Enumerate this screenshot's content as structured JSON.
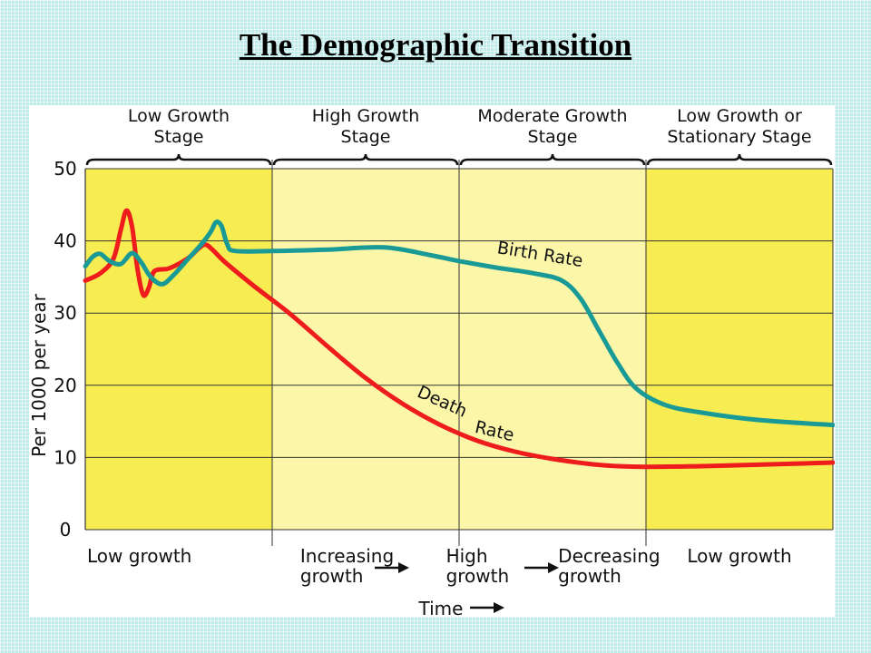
{
  "slide": {
    "title": "The Demographic Transition"
  },
  "colors": {
    "birth_rate": "#1a9a96",
    "death_rate": "#ee1c1c",
    "stage_dark": "#f7ec52",
    "stage_light": "#fbf6a8",
    "slide_background": "#bfeaea"
  },
  "chart_data": {
    "type": "line",
    "title": "",
    "xlabel": "Time",
    "ylabel": "Per 1000 per year",
    "y_ticks": [
      0,
      10,
      20,
      30,
      40,
      50
    ],
    "ylim": [
      0,
      50
    ],
    "xlim": [
      0,
      4
    ],
    "grid": true,
    "stages": [
      {
        "lines": [
          "Low Growth",
          "Stage"
        ],
        "x_start": 0,
        "x_end": 1
      },
      {
        "lines": [
          "High Growth",
          "Stage"
        ],
        "x_start": 1,
        "x_end": 2
      },
      {
        "lines": [
          "Moderate Growth",
          "Stage"
        ],
        "x_start": 2,
        "x_end": 3
      },
      {
        "lines": [
          "Low Growth or",
          "Stationary Stage"
        ],
        "x_start": 3,
        "x_end": 4
      }
    ],
    "growth_labels": [
      {
        "lines": [
          "Low growth"
        ],
        "x": 0.0,
        "anchor": "start"
      },
      {
        "lines": [
          "Increasing",
          "growth"
        ],
        "x": 1.15,
        "anchor": "start"
      },
      {
        "lines": [
          "High",
          "growth"
        ],
        "x": 1.93,
        "anchor": "start"
      },
      {
        "lines": [
          "Decreasing",
          "growth"
        ],
        "x": 2.53,
        "anchor": "start"
      },
      {
        "lines": [
          "Low growth"
        ],
        "x": 3.22,
        "anchor": "start"
      }
    ],
    "series": [
      {
        "name": "Birth Rate",
        "points": [
          [
            0,
            36.5
          ],
          [
            0.04,
            37.8
          ],
          [
            0.08,
            38.2
          ],
          [
            0.13,
            37.2
          ],
          [
            0.19,
            36.8
          ],
          [
            0.25,
            38.3
          ],
          [
            0.3,
            37.0
          ],
          [
            0.35,
            35.0
          ],
          [
            0.41,
            34.0
          ],
          [
            0.47,
            35.2
          ],
          [
            0.55,
            37.5
          ],
          [
            0.62,
            39.5
          ],
          [
            0.67,
            41.2
          ],
          [
            0.7,
            42.6
          ],
          [
            0.73,
            42.0
          ],
          [
            0.76,
            39.5
          ],
          [
            0.8,
            38.6
          ],
          [
            1.0,
            38.6
          ],
          [
            1.3,
            38.8
          ],
          [
            1.6,
            39.1
          ],
          [
            1.85,
            38.0
          ],
          [
            2.0,
            37.2
          ],
          [
            2.2,
            36.3
          ],
          [
            2.4,
            35.5
          ],
          [
            2.55,
            34.5
          ],
          [
            2.65,
            32.0
          ],
          [
            2.75,
            27.5
          ],
          [
            2.85,
            23.0
          ],
          [
            2.95,
            19.5
          ],
          [
            3.1,
            17.3
          ],
          [
            3.3,
            16.2
          ],
          [
            3.6,
            15.2
          ],
          [
            4.0,
            14.5
          ]
        ]
      },
      {
        "name": "Death Rate",
        "points": [
          [
            0,
            34.5
          ],
          [
            0.08,
            35.5
          ],
          [
            0.15,
            37.5
          ],
          [
            0.19,
            41.5
          ],
          [
            0.22,
            44.2
          ],
          [
            0.25,
            42.0
          ],
          [
            0.28,
            36.0
          ],
          [
            0.31,
            32.5
          ],
          [
            0.34,
            33.5
          ],
          [
            0.37,
            35.8
          ],
          [
            0.45,
            36.2
          ],
          [
            0.55,
            37.6
          ],
          [
            0.6,
            38.8
          ],
          [
            0.64,
            39.5
          ],
          [
            0.68,
            38.8
          ],
          [
            0.75,
            37.0
          ],
          [
            0.9,
            33.8
          ],
          [
            1.1,
            29.8
          ],
          [
            1.3,
            25.3
          ],
          [
            1.5,
            21.0
          ],
          [
            1.7,
            17.4
          ],
          [
            1.9,
            14.5
          ],
          [
            2.1,
            12.3
          ],
          [
            2.3,
            10.8
          ],
          [
            2.5,
            9.8
          ],
          [
            2.7,
            9.1
          ],
          [
            2.85,
            8.8
          ],
          [
            3.0,
            8.7
          ],
          [
            3.3,
            8.8
          ],
          [
            3.6,
            9.0
          ],
          [
            4.0,
            9.3
          ]
        ]
      }
    ],
    "series_labels": [
      {
        "text": "Birth Rate",
        "series": "Birth Rate",
        "x": 2.2,
        "y": 38.3,
        "rotate": 9
      },
      {
        "text": "Death",
        "series": "Death Rate",
        "x": 1.77,
        "y": 18.5,
        "rotate": 24
      },
      {
        "text": "Rate",
        "series": "Death Rate",
        "x": 2.08,
        "y": 13.5,
        "rotate": 13
      }
    ]
  }
}
